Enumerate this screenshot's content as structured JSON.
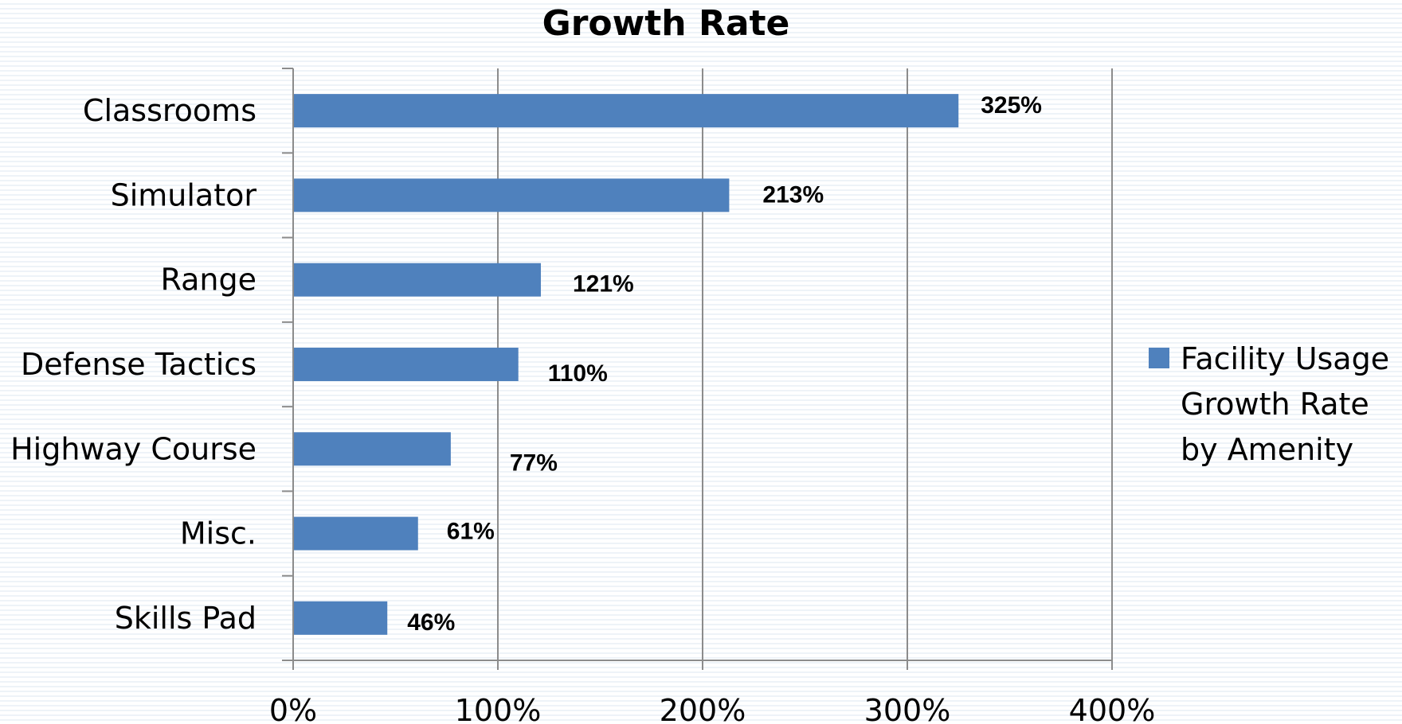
{
  "chart_data": {
    "type": "bar",
    "orientation": "horizontal",
    "title": "Growth Rate",
    "categories": [
      "Classrooms",
      "Simulator",
      "Range",
      "Defense Tactics",
      "Highway Course",
      "Misc.",
      "Skills Pad"
    ],
    "series": [
      {
        "name": "Facility Usage Growth Rate by Amenity",
        "values": [
          325,
          213,
          121,
          110,
          77,
          61,
          46
        ],
        "data_labels": [
          "325%",
          "213%",
          "121%",
          "110%",
          "77%",
          "61%",
          "46%"
        ],
        "color": "#4f81bd"
      }
    ],
    "xlim": [
      0,
      400
    ],
    "x_ticks": [
      "0%",
      "100%",
      "200%",
      "300%",
      "400%"
    ],
    "xlabel": "",
    "ylabel": "",
    "grid": "vertical",
    "legend_position": "right",
    "legend_lines": [
      "Facility Usage",
      "Growth Rate",
      "by Amenity"
    ]
  }
}
